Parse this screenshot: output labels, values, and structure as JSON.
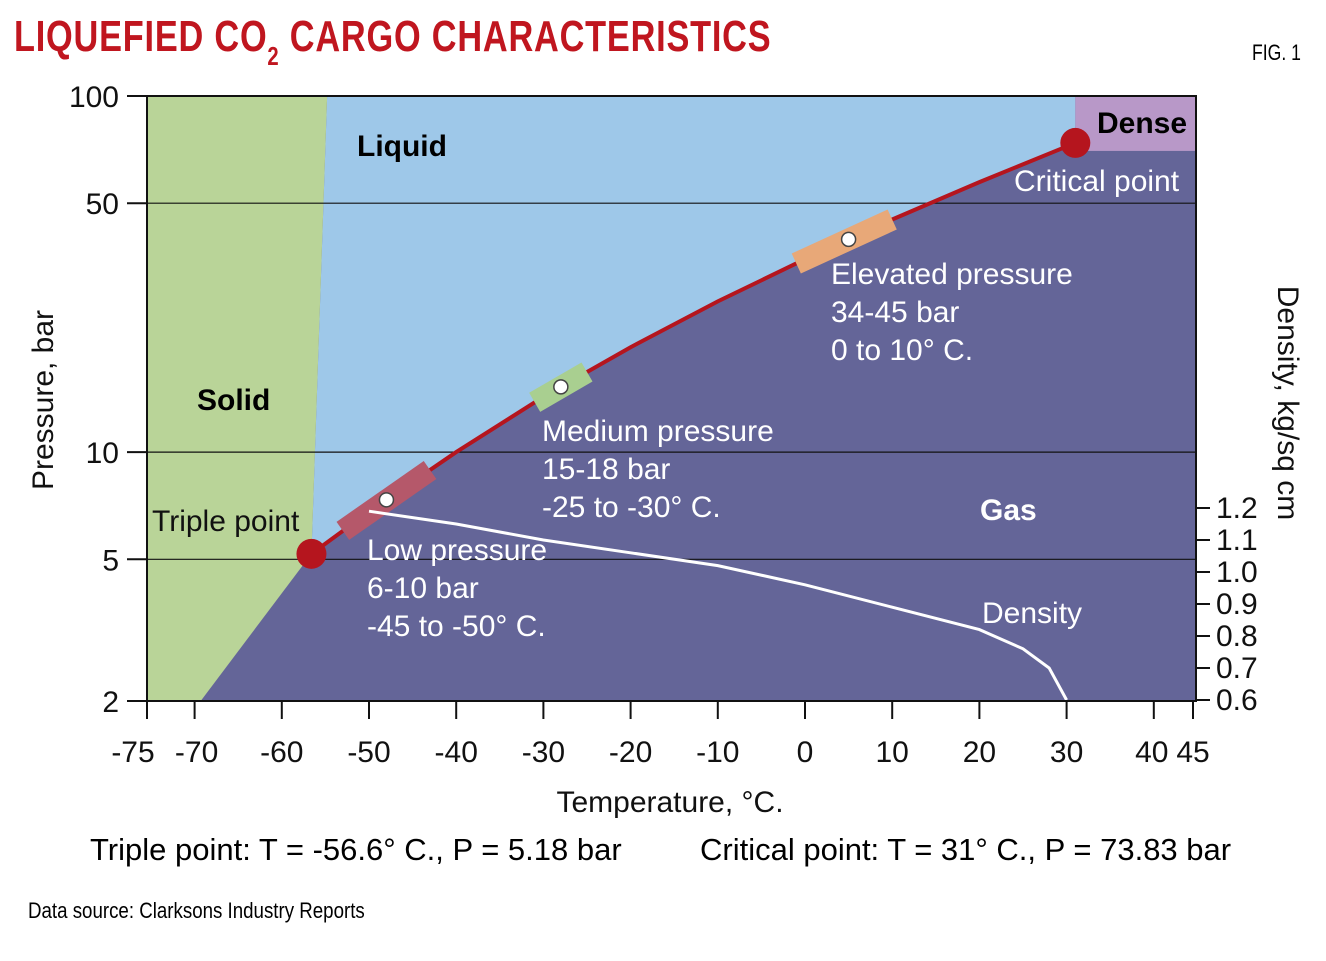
{
  "title": {
    "main_prefix": "LIQUEFIED CO",
    "subscript": "2",
    "main_suffix": " CARGO CHARACTERISTICS"
  },
  "figure_label": "FIG. 1",
  "chart_data": {
    "type": "line",
    "title": "LIQUEFIED CO2 CARGO CHARACTERISTICS",
    "xlabel": "Temperature, °C.",
    "ylabel": "Pressure, bar",
    "y2label": "Density, kg/sq cm",
    "xlim": [
      -75,
      45
    ],
    "ylim": [
      2,
      100
    ],
    "yscale": "log",
    "y2lim": [
      0.6,
      1.2
    ],
    "x_ticks": [
      "-75",
      "-70",
      "-60",
      "-50",
      "-40",
      "-30",
      "-20",
      "-10",
      "0",
      "10",
      "20",
      "30",
      "40",
      "45"
    ],
    "x_tick_values": [
      -75,
      -70,
      -60,
      -50,
      -40,
      -30,
      -20,
      -10,
      0,
      10,
      20,
      30,
      40,
      45
    ],
    "y_ticks": [
      "2",
      "5",
      "10",
      "50",
      "100"
    ],
    "y_tick_values": [
      2,
      5,
      10,
      50,
      100
    ],
    "y2_ticks": [
      "0.6",
      "0.7",
      "0.8",
      "0.9",
      "1.0",
      "1.1",
      "1.2"
    ],
    "y2_tick_values": [
      0.6,
      0.7,
      0.8,
      0.9,
      1.0,
      1.1,
      1.2
    ],
    "gridlines_at_pressure": [
      5,
      10,
      50
    ],
    "regions": [
      {
        "name": "Solid",
        "color": "#b9d498"
      },
      {
        "name": "Liquid",
        "color": "#9ec8e9"
      },
      {
        "name": "Gas",
        "color": "#646598"
      },
      {
        "name": "Dense",
        "color": "#b898c8"
      }
    ],
    "vapor_pressure_curve": {
      "color": "#b5151e",
      "x": [
        -56.6,
        -50,
        -40,
        -30,
        -20,
        -10,
        0,
        10,
        20,
        31
      ],
      "y": [
        5.18,
        6.8,
        10,
        14.3,
        19.7,
        26.5,
        34.8,
        45,
        57.3,
        73.83
      ]
    },
    "solid_liquid_boundary": {
      "x": [
        -56.6,
        -54.8
      ],
      "y": [
        5.18,
        100
      ]
    },
    "sublimation_boundary": {
      "x": [
        -69.3,
        -56.6
      ],
      "y": [
        2,
        5.18
      ]
    },
    "density_curve": {
      "name": "Density",
      "x": [
        -50,
        -40,
        -30,
        -20,
        -10,
        0,
        10,
        20,
        25,
        28,
        30
      ],
      "y": [
        1.19,
        1.15,
        1.1,
        1.06,
        1.02,
        0.96,
        0.89,
        0.82,
        0.76,
        0.7,
        0.6
      ]
    },
    "points": [
      {
        "name": "Triple point",
        "x": -56.6,
        "y": 5.18
      },
      {
        "name": "Critical point",
        "x": 31,
        "y": 73.83
      }
    ],
    "cargo_bands": [
      {
        "name": "Low pressure",
        "x_range": [
          -53,
          -43
        ],
        "marker_x": -48,
        "color": "#b5586a",
        "lines": [
          "Low pressure",
          "6-10 bar",
          "-45 to -50° C."
        ]
      },
      {
        "name": "Medium pressure",
        "x_range": [
          -31,
          -25
        ],
        "marker_x": -28,
        "color": "#a9cf90",
        "lines": [
          "Medium pressure",
          "15-18 bar",
          "-25 to -30° C."
        ]
      },
      {
        "name": "Elevated pressure",
        "x_range": [
          -1,
          10
        ],
        "marker_x": 5,
        "color": "#e8a878",
        "lines": [
          "Elevated pressure",
          "34-45 bar",
          "0 to 10° C."
        ]
      }
    ],
    "annotations": {
      "solid": "Solid",
      "liquid": "Liquid",
      "gas": "Gas",
      "dense": "Dense",
      "triple": "Triple point",
      "critical": "Critical point",
      "density": "Density"
    }
  },
  "footer": {
    "triple": "Triple point: T = -56.6° C., P = 5.18 bar",
    "critical": "Critical point: T = 31° C., P = 73.83 bar",
    "source": "Data source: Clarksons Industry Reports"
  }
}
